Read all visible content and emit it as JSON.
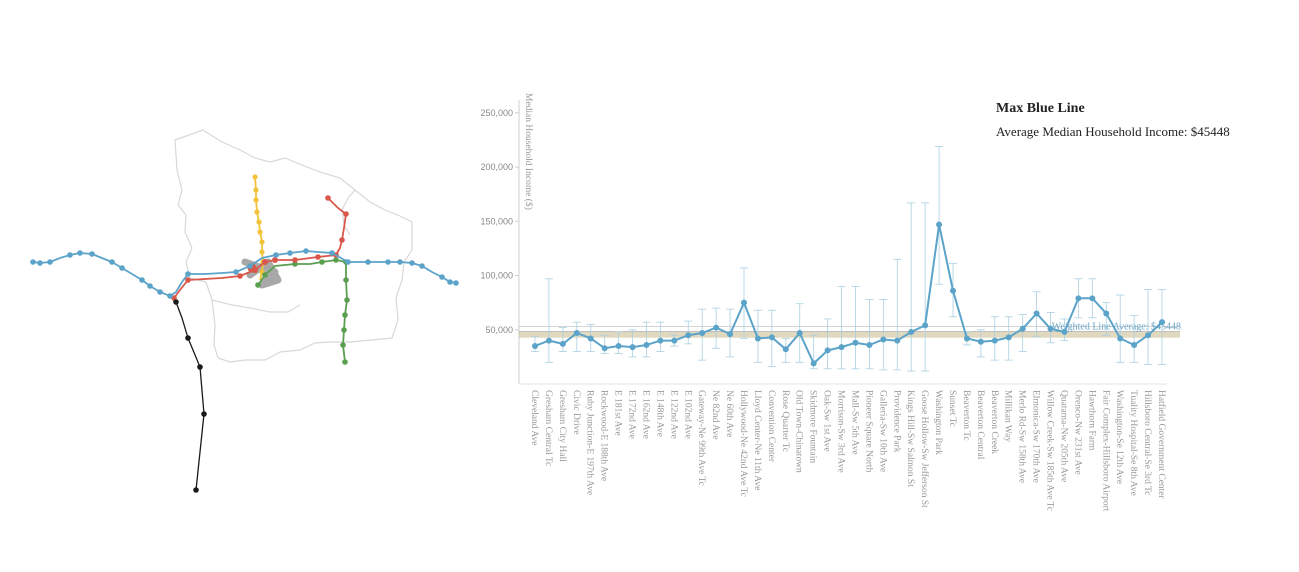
{
  "header": {
    "title": "Max Blue Line",
    "subtitle": "Average Median Household Income: $45448"
  },
  "colors": {
    "blue": "#5ba3c9",
    "red": "#d9574a",
    "green": "#5a9e4f",
    "yellow": "#f2c33a",
    "grey": "#a8a8a8",
    "black": "#1a1a1a",
    "outline": "#d8d8d8",
    "avg_line": "#c9b98a"
  },
  "map": {
    "lines": [
      "blue",
      "red",
      "green",
      "yellow",
      "black",
      "grey"
    ]
  },
  "chart_data": {
    "type": "line",
    "title": "Max Blue Line",
    "ylabel": "Median Household Income ($)",
    "ylim": [
      0,
      260000
    ],
    "yticks": [
      50000,
      100000,
      150000,
      200000,
      250000
    ],
    "ytick_labels": [
      "50,000",
      "100,000",
      "150,000",
      "200,000",
      "250,000"
    ],
    "error_bars": true,
    "reference_line": {
      "label": "Weighted Line Average: $45448",
      "value": 45448
    },
    "points": [
      {
        "x": "Cleveland Ave",
        "y": 35000,
        "lo": 30000,
        "hi": 44000
      },
      {
        "x": "Gresham Central Tc",
        "y": 40000,
        "lo": 20000,
        "hi": 97000
      },
      {
        "x": "Gresham City Hall",
        "y": 37000,
        "lo": 30000,
        "hi": 52000
      },
      {
        "x": "Civic Drive",
        "y": 47000,
        "lo": 30000,
        "hi": 57000
      },
      {
        "x": "Ruby Junction-E 197th Ave",
        "y": 42000,
        "lo": 30000,
        "hi": 55000
      },
      {
        "x": "Rockwood-E 188th Ave",
        "y": 33000,
        "lo": 28000,
        "hi": 45000
      },
      {
        "x": "E 181st Ave",
        "y": 35000,
        "lo": 28000,
        "hi": 48000
      },
      {
        "x": "E 172nd Ave",
        "y": 34000,
        "lo": 25000,
        "hi": 50000
      },
      {
        "x": "E 162nd Ave",
        "y": 36000,
        "lo": 25000,
        "hi": 57000
      },
      {
        "x": "E 148th Ave",
        "y": 40000,
        "lo": 30000,
        "hi": 57000
      },
      {
        "x": "E 122nd Ave",
        "y": 40000,
        "lo": 35000,
        "hi": 45000
      },
      {
        "x": "E 102nd Ave",
        "y": 45000,
        "lo": 37000,
        "hi": 58000
      },
      {
        "x": "Gateway-Ne 99th Ave Tc",
        "y": 47000,
        "lo": 22000,
        "hi": 69000
      },
      {
        "x": "Ne 82nd Ave",
        "y": 52000,
        "lo": 33000,
        "hi": 70000
      },
      {
        "x": "Ne 60th Ave",
        "y": 46000,
        "lo": 25000,
        "hi": 69000
      },
      {
        "x": "Hollywood-Ne 42nd Ave Tc",
        "y": 75000,
        "lo": 42000,
        "hi": 107000
      },
      {
        "x": "Lloyd Center-Ne 11th Ave",
        "y": 42000,
        "lo": 20000,
        "hi": 68000
      },
      {
        "x": "Convention Center",
        "y": 43000,
        "lo": 16000,
        "hi": 68000
      },
      {
        "x": "Rose Quarter Tc",
        "y": 32000,
        "lo": 20000,
        "hi": 42000
      },
      {
        "x": "Old Town-Chinatown",
        "y": 47000,
        "lo": 20000,
        "hi": 74000
      },
      {
        "x": "Skidmore Fountain",
        "y": 19000,
        "lo": 14000,
        "hi": 45000
      },
      {
        "x": "Oak-Sw 1st Ave",
        "y": 31000,
        "lo": 14000,
        "hi": 60000
      },
      {
        "x": "Morrison-Sw 3rd Ave",
        "y": 34000,
        "lo": 14000,
        "hi": 90000
      },
      {
        "x": "Mall-Sw 5th Ave",
        "y": 38000,
        "lo": 14000,
        "hi": 90000
      },
      {
        "x": "Pioneer Square North",
        "y": 36000,
        "lo": 14000,
        "hi": 78000
      },
      {
        "x": "Galleria-Sw 10th Ave",
        "y": 41000,
        "lo": 13000,
        "hi": 78000
      },
      {
        "x": "Providence Park",
        "y": 40000,
        "lo": 13000,
        "hi": 115000
      },
      {
        "x": "Kings Hill-Sw Salmon St",
        "y": 48000,
        "lo": 12000,
        "hi": 167000
      },
      {
        "x": "Goose Hollow-Sw Jefferson St",
        "y": 54000,
        "lo": 12000,
        "hi": 167000
      },
      {
        "x": "Washington Park",
        "y": 147000,
        "lo": 92000,
        "hi": 219000
      },
      {
        "x": "Sunset Tc",
        "y": 86000,
        "lo": 62000,
        "hi": 111000
      },
      {
        "x": "Beaverton Tc",
        "y": 42000,
        "lo": 36000,
        "hi": 48000
      },
      {
        "x": "Beaverton Central",
        "y": 39000,
        "lo": 25000,
        "hi": 50000
      },
      {
        "x": "Beaverton Creek",
        "y": 40000,
        "lo": 22000,
        "hi": 62000
      },
      {
        "x": "Millikan Way",
        "y": 43000,
        "lo": 22000,
        "hi": 62000
      },
      {
        "x": "Merlo Rd-Sw 158th Ave",
        "y": 51000,
        "lo": 30000,
        "hi": 64000
      },
      {
        "x": "Elmonica-Sw 170th Ave",
        "y": 65000,
        "lo": 44000,
        "hi": 85000
      },
      {
        "x": "Willow Creek-Sw 185th Ave Tc",
        "y": 51000,
        "lo": 38000,
        "hi": 66000
      },
      {
        "x": "Quatama-Nw 205th Ave",
        "y": 48000,
        "lo": 40000,
        "hi": 60000
      },
      {
        "x": "Orenco-Nw 231st Ave",
        "y": 79000,
        "lo": 61000,
        "hi": 97000
      },
      {
        "x": "Hawthorn Farm",
        "y": 79000,
        "lo": 61000,
        "hi": 97000
      },
      {
        "x": "Fair Complex-Hillsboro Airport",
        "y": 65000,
        "lo": 45000,
        "hi": 75000
      },
      {
        "x": "Washington-Se 12th Ave",
        "y": 42000,
        "lo": 20000,
        "hi": 82000
      },
      {
        "x": "Tuality Hospital-Se 8th Ave",
        "y": 36000,
        "lo": 20000,
        "hi": 63000
      },
      {
        "x": "Hillsboro Central-Se 3rd Tc",
        "y": 45000,
        "lo": 18000,
        "hi": 87000
      },
      {
        "x": "Hatfield Government Center",
        "y": 57000,
        "lo": 18000,
        "hi": 87000
      }
    ]
  }
}
